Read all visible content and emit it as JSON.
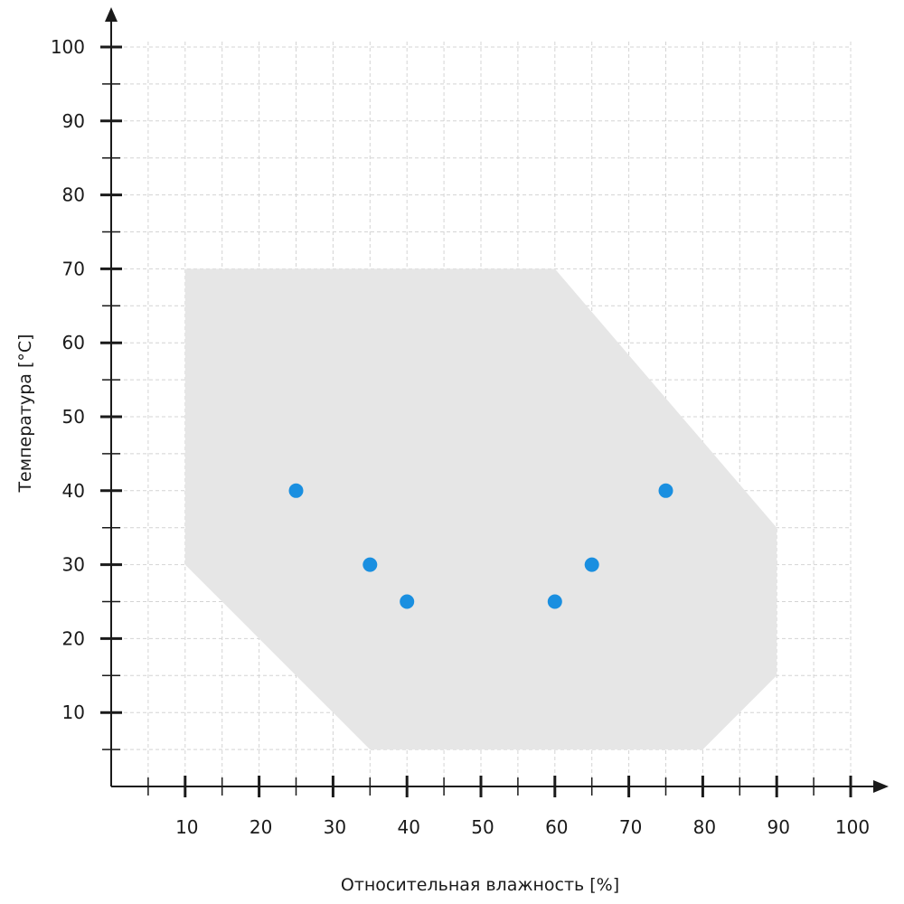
{
  "chart_data": {
    "type": "scatter",
    "title": "",
    "xlabel": "Относительная влажность [%]",
    "ylabel": "Температура [°C]",
    "xlim": [
      0,
      100
    ],
    "ylim": [
      0,
      100
    ],
    "x_ticks": [
      "10",
      "20",
      "30",
      "40",
      "50",
      "60",
      "70",
      "80",
      "90",
      "100"
    ],
    "y_ticks": [
      "10",
      "20",
      "30",
      "40",
      "50",
      "60",
      "70",
      "80",
      "90",
      "100"
    ],
    "grid": true,
    "region": {
      "color": "#e6e6e6",
      "polygon": [
        [
          10,
          70
        ],
        [
          60,
          70
        ],
        [
          90,
          35
        ],
        [
          90,
          15
        ],
        [
          80,
          5
        ],
        [
          35,
          5
        ],
        [
          10,
          30
        ]
      ]
    },
    "series": [
      {
        "color": "#1a8fe0",
        "points": [
          [
            25,
            40
          ],
          [
            35,
            30
          ],
          [
            40,
            25
          ],
          [
            60,
            25
          ],
          [
            65,
            30
          ],
          [
            75,
            40
          ]
        ]
      }
    ]
  }
}
